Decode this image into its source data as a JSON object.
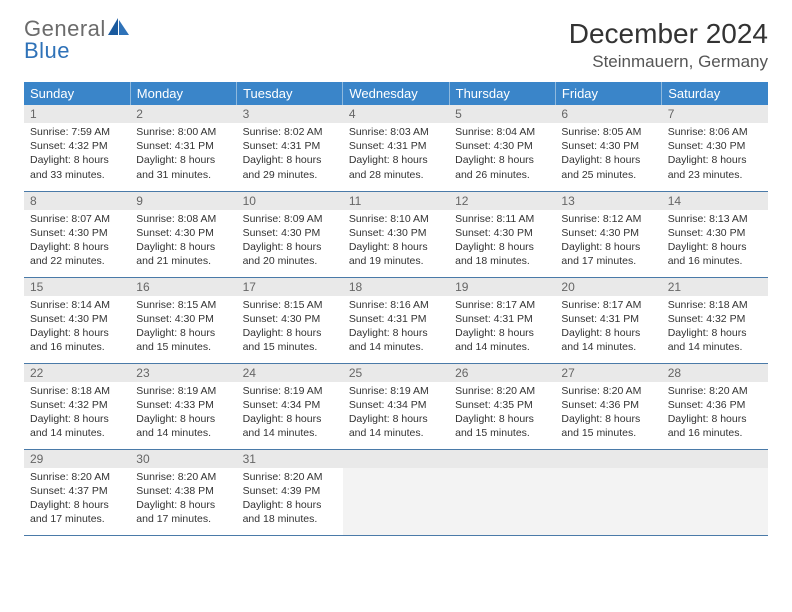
{
  "logo": {
    "line1": "General",
    "line2": "Blue"
  },
  "title": "December 2024",
  "location": "Steinmauern, Germany",
  "colors": {
    "header_bg": "#3a85c9",
    "header_border": "#8fb9dd",
    "row_border": "#4a7aa8",
    "band_bg": "#e9e9e9",
    "band_text": "#666666",
    "logo_gray": "#6b6b6b",
    "logo_blue": "#2f72b8",
    "empty_bg": "#f3f3f3"
  },
  "weekdays": [
    "Sunday",
    "Monday",
    "Tuesday",
    "Wednesday",
    "Thursday",
    "Friday",
    "Saturday"
  ],
  "weeks": [
    [
      {
        "day": "1",
        "sunrise": "Sunrise: 7:59 AM",
        "sunset": "Sunset: 4:32 PM",
        "dayl1": "Daylight: 8 hours",
        "dayl2": "and 33 minutes."
      },
      {
        "day": "2",
        "sunrise": "Sunrise: 8:00 AM",
        "sunset": "Sunset: 4:31 PM",
        "dayl1": "Daylight: 8 hours",
        "dayl2": "and 31 minutes."
      },
      {
        "day": "3",
        "sunrise": "Sunrise: 8:02 AM",
        "sunset": "Sunset: 4:31 PM",
        "dayl1": "Daylight: 8 hours",
        "dayl2": "and 29 minutes."
      },
      {
        "day": "4",
        "sunrise": "Sunrise: 8:03 AM",
        "sunset": "Sunset: 4:31 PM",
        "dayl1": "Daylight: 8 hours",
        "dayl2": "and 28 minutes."
      },
      {
        "day": "5",
        "sunrise": "Sunrise: 8:04 AM",
        "sunset": "Sunset: 4:30 PM",
        "dayl1": "Daylight: 8 hours",
        "dayl2": "and 26 minutes."
      },
      {
        "day": "6",
        "sunrise": "Sunrise: 8:05 AM",
        "sunset": "Sunset: 4:30 PM",
        "dayl1": "Daylight: 8 hours",
        "dayl2": "and 25 minutes."
      },
      {
        "day": "7",
        "sunrise": "Sunrise: 8:06 AM",
        "sunset": "Sunset: 4:30 PM",
        "dayl1": "Daylight: 8 hours",
        "dayl2": "and 23 minutes."
      }
    ],
    [
      {
        "day": "8",
        "sunrise": "Sunrise: 8:07 AM",
        "sunset": "Sunset: 4:30 PM",
        "dayl1": "Daylight: 8 hours",
        "dayl2": "and 22 minutes."
      },
      {
        "day": "9",
        "sunrise": "Sunrise: 8:08 AM",
        "sunset": "Sunset: 4:30 PM",
        "dayl1": "Daylight: 8 hours",
        "dayl2": "and 21 minutes."
      },
      {
        "day": "10",
        "sunrise": "Sunrise: 8:09 AM",
        "sunset": "Sunset: 4:30 PM",
        "dayl1": "Daylight: 8 hours",
        "dayl2": "and 20 minutes."
      },
      {
        "day": "11",
        "sunrise": "Sunrise: 8:10 AM",
        "sunset": "Sunset: 4:30 PM",
        "dayl1": "Daylight: 8 hours",
        "dayl2": "and 19 minutes."
      },
      {
        "day": "12",
        "sunrise": "Sunrise: 8:11 AM",
        "sunset": "Sunset: 4:30 PM",
        "dayl1": "Daylight: 8 hours",
        "dayl2": "and 18 minutes."
      },
      {
        "day": "13",
        "sunrise": "Sunrise: 8:12 AM",
        "sunset": "Sunset: 4:30 PM",
        "dayl1": "Daylight: 8 hours",
        "dayl2": "and 17 minutes."
      },
      {
        "day": "14",
        "sunrise": "Sunrise: 8:13 AM",
        "sunset": "Sunset: 4:30 PM",
        "dayl1": "Daylight: 8 hours",
        "dayl2": "and 16 minutes."
      }
    ],
    [
      {
        "day": "15",
        "sunrise": "Sunrise: 8:14 AM",
        "sunset": "Sunset: 4:30 PM",
        "dayl1": "Daylight: 8 hours",
        "dayl2": "and 16 minutes."
      },
      {
        "day": "16",
        "sunrise": "Sunrise: 8:15 AM",
        "sunset": "Sunset: 4:30 PM",
        "dayl1": "Daylight: 8 hours",
        "dayl2": "and 15 minutes."
      },
      {
        "day": "17",
        "sunrise": "Sunrise: 8:15 AM",
        "sunset": "Sunset: 4:30 PM",
        "dayl1": "Daylight: 8 hours",
        "dayl2": "and 15 minutes."
      },
      {
        "day": "18",
        "sunrise": "Sunrise: 8:16 AM",
        "sunset": "Sunset: 4:31 PM",
        "dayl1": "Daylight: 8 hours",
        "dayl2": "and 14 minutes."
      },
      {
        "day": "19",
        "sunrise": "Sunrise: 8:17 AM",
        "sunset": "Sunset: 4:31 PM",
        "dayl1": "Daylight: 8 hours",
        "dayl2": "and 14 minutes."
      },
      {
        "day": "20",
        "sunrise": "Sunrise: 8:17 AM",
        "sunset": "Sunset: 4:31 PM",
        "dayl1": "Daylight: 8 hours",
        "dayl2": "and 14 minutes."
      },
      {
        "day": "21",
        "sunrise": "Sunrise: 8:18 AM",
        "sunset": "Sunset: 4:32 PM",
        "dayl1": "Daylight: 8 hours",
        "dayl2": "and 14 minutes."
      }
    ],
    [
      {
        "day": "22",
        "sunrise": "Sunrise: 8:18 AM",
        "sunset": "Sunset: 4:32 PM",
        "dayl1": "Daylight: 8 hours",
        "dayl2": "and 14 minutes."
      },
      {
        "day": "23",
        "sunrise": "Sunrise: 8:19 AM",
        "sunset": "Sunset: 4:33 PM",
        "dayl1": "Daylight: 8 hours",
        "dayl2": "and 14 minutes."
      },
      {
        "day": "24",
        "sunrise": "Sunrise: 8:19 AM",
        "sunset": "Sunset: 4:34 PM",
        "dayl1": "Daylight: 8 hours",
        "dayl2": "and 14 minutes."
      },
      {
        "day": "25",
        "sunrise": "Sunrise: 8:19 AM",
        "sunset": "Sunset: 4:34 PM",
        "dayl1": "Daylight: 8 hours",
        "dayl2": "and 14 minutes."
      },
      {
        "day": "26",
        "sunrise": "Sunrise: 8:20 AM",
        "sunset": "Sunset: 4:35 PM",
        "dayl1": "Daylight: 8 hours",
        "dayl2": "and 15 minutes."
      },
      {
        "day": "27",
        "sunrise": "Sunrise: 8:20 AM",
        "sunset": "Sunset: 4:36 PM",
        "dayl1": "Daylight: 8 hours",
        "dayl2": "and 15 minutes."
      },
      {
        "day": "28",
        "sunrise": "Sunrise: 8:20 AM",
        "sunset": "Sunset: 4:36 PM",
        "dayl1": "Daylight: 8 hours",
        "dayl2": "and 16 minutes."
      }
    ],
    [
      {
        "day": "29",
        "sunrise": "Sunrise: 8:20 AM",
        "sunset": "Sunset: 4:37 PM",
        "dayl1": "Daylight: 8 hours",
        "dayl2": "and 17 minutes."
      },
      {
        "day": "30",
        "sunrise": "Sunrise: 8:20 AM",
        "sunset": "Sunset: 4:38 PM",
        "dayl1": "Daylight: 8 hours",
        "dayl2": "and 17 minutes."
      },
      {
        "day": "31",
        "sunrise": "Sunrise: 8:20 AM",
        "sunset": "Sunset: 4:39 PM",
        "dayl1": "Daylight: 8 hours",
        "dayl2": "and 18 minutes."
      },
      {
        "empty": true
      },
      {
        "empty": true
      },
      {
        "empty": true
      },
      {
        "empty": true
      }
    ]
  ]
}
